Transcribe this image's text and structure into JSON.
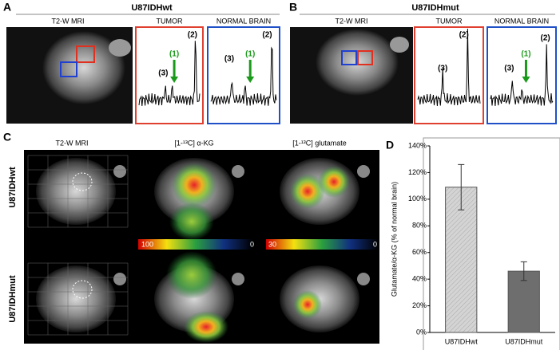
{
  "panel_labels": [
    "A",
    "B",
    "C",
    "D"
  ],
  "panel_a": {
    "title": "U87IDHwt",
    "headers": [
      "T2-W MRI",
      "TUMOR",
      "NORMAL BRAIN"
    ]
  },
  "panel_b": {
    "title": "U87IDHmut",
    "headers": [
      "T2-W MRI",
      "TUMOR",
      "NORMAL BRAIN"
    ]
  },
  "peak_labels": [
    "(1)",
    "(2)",
    "(3)"
  ],
  "panel_c": {
    "headers": [
      "T2-W MRI",
      "[1-¹³C] α-KG",
      "[1-¹³C] glutamate"
    ],
    "rows": [
      "U87IDHwt",
      "U87IDHmut"
    ],
    "colorbars": [
      {
        "max": "100",
        "min": "0"
      },
      {
        "max": "30",
        "min": "0"
      }
    ]
  },
  "chart_data": {
    "type": "bar",
    "ylabel": "Glutamate/α-KG (% of normal brain)",
    "categories": [
      "U87IDHwt",
      "U87IDHmut"
    ],
    "values": [
      109,
      46
    ],
    "errors": [
      17,
      7
    ],
    "colors": [
      "#cfcfcf",
      "#6e6e6e"
    ],
    "ylim": [
      0,
      140
    ],
    "yticks": [
      {
        "value": 0,
        "label": "0%"
      },
      {
        "value": 20,
        "label": "20%"
      },
      {
        "value": 40,
        "label": "40%"
      },
      {
        "value": 60,
        "label": "60%"
      },
      {
        "value": 80,
        "label": "80%"
      },
      {
        "value": 100,
        "label": "100%"
      },
      {
        "value": 120,
        "label": "120%"
      },
      {
        "value": 140,
        "label": "140%"
      }
    ]
  }
}
